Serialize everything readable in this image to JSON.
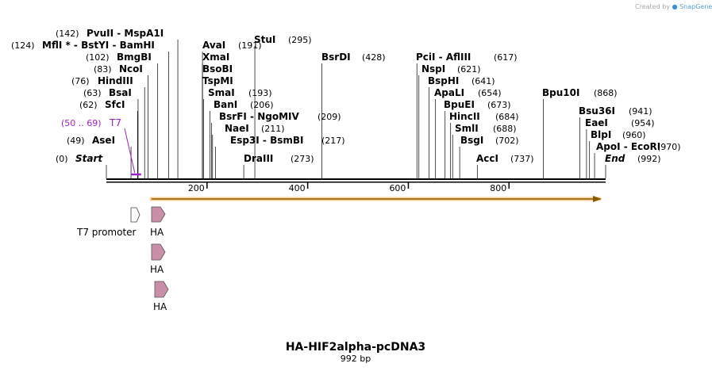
{
  "credit": {
    "text": "Created by",
    "brand": "SnapGene"
  },
  "title": "HA-HIF2alpha-pcDNA3",
  "length_label": "992 bp",
  "sequence_length": 992,
  "colors": {
    "orf": "#f5b04a",
    "orf_arrow": "#8a5a00",
    "ha": "#c98fa8",
    "t7": "#a020c8",
    "line": "#000000"
  },
  "ticks": [
    {
      "label": "200",
      "value": 200
    },
    {
      "label": "400",
      "value": 400
    },
    {
      "label": "600",
      "value": 600
    },
    {
      "label": "800",
      "value": 800
    }
  ],
  "sites": [
    {
      "pos": "(0)",
      "name": "Start",
      "cut": 0,
      "italic": true
    },
    {
      "pos": "(49)",
      "name": "AseI",
      "cut": 49
    },
    {
      "pos": "(62)",
      "name": "SfcI",
      "cut": 62
    },
    {
      "pos": "(63)",
      "name": "BsaI",
      "cut": 63
    },
    {
      "pos": "(76)",
      "name": "HindIII",
      "cut": 76
    },
    {
      "pos": "(83)",
      "name": "NcoI",
      "cut": 83
    },
    {
      "pos": "(102)",
      "name": "BmgBI",
      "cut": 102
    },
    {
      "pos": "(124)",
      "name": "MflI * - BstYI - BamHI",
      "cut": 124
    },
    {
      "pos": "(142)",
      "name": "PvuII - MspA1I",
      "cut": 142
    },
    {
      "pos": "(191)",
      "name": "AvaI",
      "cut": 191
    },
    {
      "pos": "",
      "name": "XmaI",
      "cut": 191
    },
    {
      "pos": "",
      "name": "BsoBI",
      "cut": 191
    },
    {
      "pos": "",
      "name": "TspMI",
      "cut": 191
    },
    {
      "pos": "(193)",
      "name": "SmaI",
      "cut": 193
    },
    {
      "pos": "(206)",
      "name": "BanI",
      "cut": 206
    },
    {
      "pos": "(209)",
      "name": "BsrFI - NgoMIV",
      "cut": 209
    },
    {
      "pos": "(211)",
      "name": "NaeI",
      "cut": 211
    },
    {
      "pos": "(217)",
      "name": "Esp3I - BsmBI",
      "cut": 217
    },
    {
      "pos": "(273)",
      "name": "DraIII",
      "cut": 273
    },
    {
      "pos": "(295)",
      "name": "StuI",
      "cut": 295
    },
    {
      "pos": "(428)",
      "name": "BsrDI",
      "cut": 428
    },
    {
      "pos": "(617)",
      "name": "PciI - AflIII",
      "cut": 617
    },
    {
      "pos": "(621)",
      "name": "NspI",
      "cut": 621
    },
    {
      "pos": "(641)",
      "name": "BspHI",
      "cut": 641
    },
    {
      "pos": "(654)",
      "name": "ApaLI",
      "cut": 654
    },
    {
      "pos": "(673)",
      "name": "BpuEI",
      "cut": 673
    },
    {
      "pos": "(684)",
      "name": "HincII",
      "cut": 684
    },
    {
      "pos": "(688)",
      "name": "SmlI",
      "cut": 688
    },
    {
      "pos": "(702)",
      "name": "BsgI",
      "cut": 702
    },
    {
      "pos": "(737)",
      "name": "AccI",
      "cut": 737
    },
    {
      "pos": "(868)",
      "name": "Bpu10I",
      "cut": 868
    },
    {
      "pos": "(941)",
      "name": "Bsu36I",
      "cut": 941
    },
    {
      "pos": "(954)",
      "name": "EaeI",
      "cut": 954
    },
    {
      "pos": "(960)",
      "name": "BlpI",
      "cut": 960
    },
    {
      "pos": "(970)",
      "name": "ApoI - EcoRI",
      "cut": 970
    },
    {
      "pos": "(992)",
      "name": "End",
      "cut": 992,
      "italic": true
    }
  ],
  "primer": {
    "range": "(50 .. 69)",
    "name": "T7",
    "start": 50,
    "end": 69
  },
  "features": [
    {
      "name": "T7 promoter",
      "kind": "promoter"
    },
    {
      "name": "HA",
      "kind": "tag"
    },
    {
      "name": "HA",
      "kind": "tag"
    },
    {
      "name": "HA",
      "kind": "tag"
    }
  ],
  "orf": {
    "start": 85,
    "end": 992
  }
}
